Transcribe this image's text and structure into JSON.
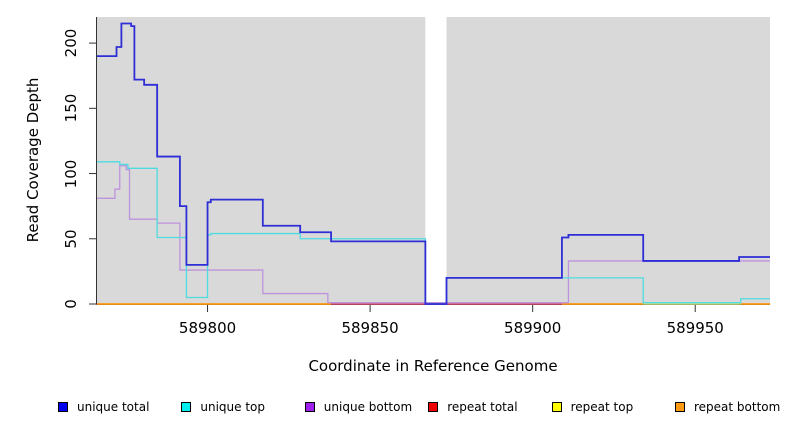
{
  "figure": {
    "background": "#ffffff",
    "panel_background": "#d9d9d9",
    "axis_color": "#333333"
  },
  "chart_data": {
    "type": "line",
    "subtype": "step",
    "title": "",
    "xlabel": "Coordinate in Reference Genome",
    "ylabel": "Read Coverage Depth",
    "xlim": [
      589766,
      589973
    ],
    "ylim": [
      0,
      220
    ],
    "x_ticks": [
      589800,
      589850,
      589900,
      589950
    ],
    "y_ticks": [
      0,
      50,
      100,
      150,
      200
    ],
    "grid": false,
    "legend_position": "bottom",
    "gap_region": {
      "x_start": 589867,
      "x_end": 589873.5,
      "color": "#ffffff"
    },
    "series": [
      {
        "name": "unique total",
        "line_color": "#2e2ed6",
        "legend_color": "#0000ee",
        "width": 1.8,
        "segments": [
          [
            [
              589766,
              190
            ],
            [
              589772,
              197
            ],
            [
              589773.5,
              215
            ],
            [
              589776.5,
              213
            ],
            [
              589777.5,
              172
            ],
            [
              589780.5,
              168
            ],
            [
              589784.5,
              113
            ],
            [
              589791.5,
              75
            ],
            [
              589793.5,
              30
            ],
            [
              589800,
              78
            ],
            [
              589801,
              80
            ],
            [
              589817,
              60
            ],
            [
              589828.5,
              55
            ],
            [
              589838,
              48
            ],
            [
              589867,
              0
            ],
            [
              589873.5,
              20
            ],
            [
              589909,
              51
            ],
            [
              589911,
              53
            ],
            [
              589934,
              33
            ],
            [
              589963.5,
              36
            ],
            [
              589973,
              36
            ]
          ]
        ]
      },
      {
        "name": "unique top",
        "line_color": "#4fdce0",
        "legend_color": "#00eeee",
        "width": 1.3,
        "segments": [
          [
            [
              589766,
              109
            ],
            [
              589773,
              107
            ],
            [
              589775.5,
              104
            ],
            [
              589784.5,
              51
            ],
            [
              589793.5,
              5
            ],
            [
              589800,
              53
            ],
            [
              589801,
              54
            ],
            [
              589828.5,
              50
            ],
            [
              589867,
              0
            ],
            [
              589873.5,
              20
            ],
            [
              589934,
              1
            ],
            [
              589964,
              4
            ],
            [
              589973,
              4
            ]
          ]
        ]
      },
      {
        "name": "unique bottom",
        "line_color": "#bd93dc",
        "legend_color": "#a020f0",
        "width": 1.3,
        "segments": [
          [
            [
              589766,
              81
            ],
            [
              589771.5,
              88
            ],
            [
              589773,
              106
            ],
            [
              589775,
              103
            ],
            [
              589776,
              65
            ],
            [
              589784.5,
              62
            ],
            [
              589791.5,
              26
            ],
            [
              589817,
              8
            ],
            [
              589837,
              1
            ],
            [
              589911,
              33
            ],
            [
              589973,
              33
            ]
          ]
        ]
      },
      {
        "name": "repeat total",
        "line_color": "#d84f6e",
        "legend_color": "#ee0000",
        "width": 1.4,
        "segments": [
          [
            [
              589838,
              0
            ],
            [
              589909,
              0
            ]
          ]
        ]
      },
      {
        "name": "repeat top",
        "line_color": "#cfe07a",
        "legend_color": "#ffff00",
        "width": 1.4,
        "segments": [
          [
            [
              589934,
              0
            ],
            [
              589964,
              0
            ]
          ]
        ]
      },
      {
        "name": "repeat bottom",
        "line_color": "#ff9912",
        "legend_color": "#ff9912",
        "width": 1.8,
        "segments": [
          [
            [
              589766,
              0
            ],
            [
              589838,
              0
            ]
          ],
          [
            [
              589909,
              0
            ],
            [
              589934,
              0
            ]
          ],
          [
            [
              589964,
              0
            ],
            [
              589973,
              0
            ]
          ]
        ]
      }
    ]
  }
}
